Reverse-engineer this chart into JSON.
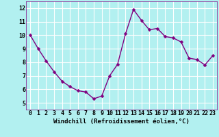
{
  "x": [
    0,
    1,
    2,
    3,
    4,
    5,
    6,
    7,
    8,
    9,
    10,
    11,
    12,
    13,
    14,
    15,
    16,
    17,
    18,
    19,
    20,
    21,
    22,
    23
  ],
  "y": [
    10.0,
    9.0,
    8.1,
    7.3,
    6.6,
    6.2,
    5.9,
    5.8,
    5.3,
    5.5,
    7.0,
    7.85,
    10.1,
    11.9,
    11.1,
    10.4,
    10.5,
    9.9,
    9.8,
    9.5,
    8.3,
    8.2,
    7.8,
    8.5
  ],
  "line_color": "#800080",
  "marker_color": "#800080",
  "bg_color": "#b2f0f0",
  "grid_color": "#ffffff",
  "xlabel": "Windchill (Refroidissement éolien,°C)",
  "ylim": [
    4.5,
    12.5
  ],
  "xlim": [
    -0.5,
    23.5
  ],
  "yticks": [
    5,
    6,
    7,
    8,
    9,
    10,
    11,
    12
  ],
  "xticks": [
    0,
    1,
    2,
    3,
    4,
    5,
    6,
    7,
    8,
    9,
    10,
    11,
    12,
    13,
    14,
    15,
    16,
    17,
    18,
    19,
    20,
    21,
    22,
    23
  ],
  "label_fontsize": 6.5,
  "tick_fontsize": 6.0,
  "line_width": 1.0,
  "marker_size": 2.5
}
